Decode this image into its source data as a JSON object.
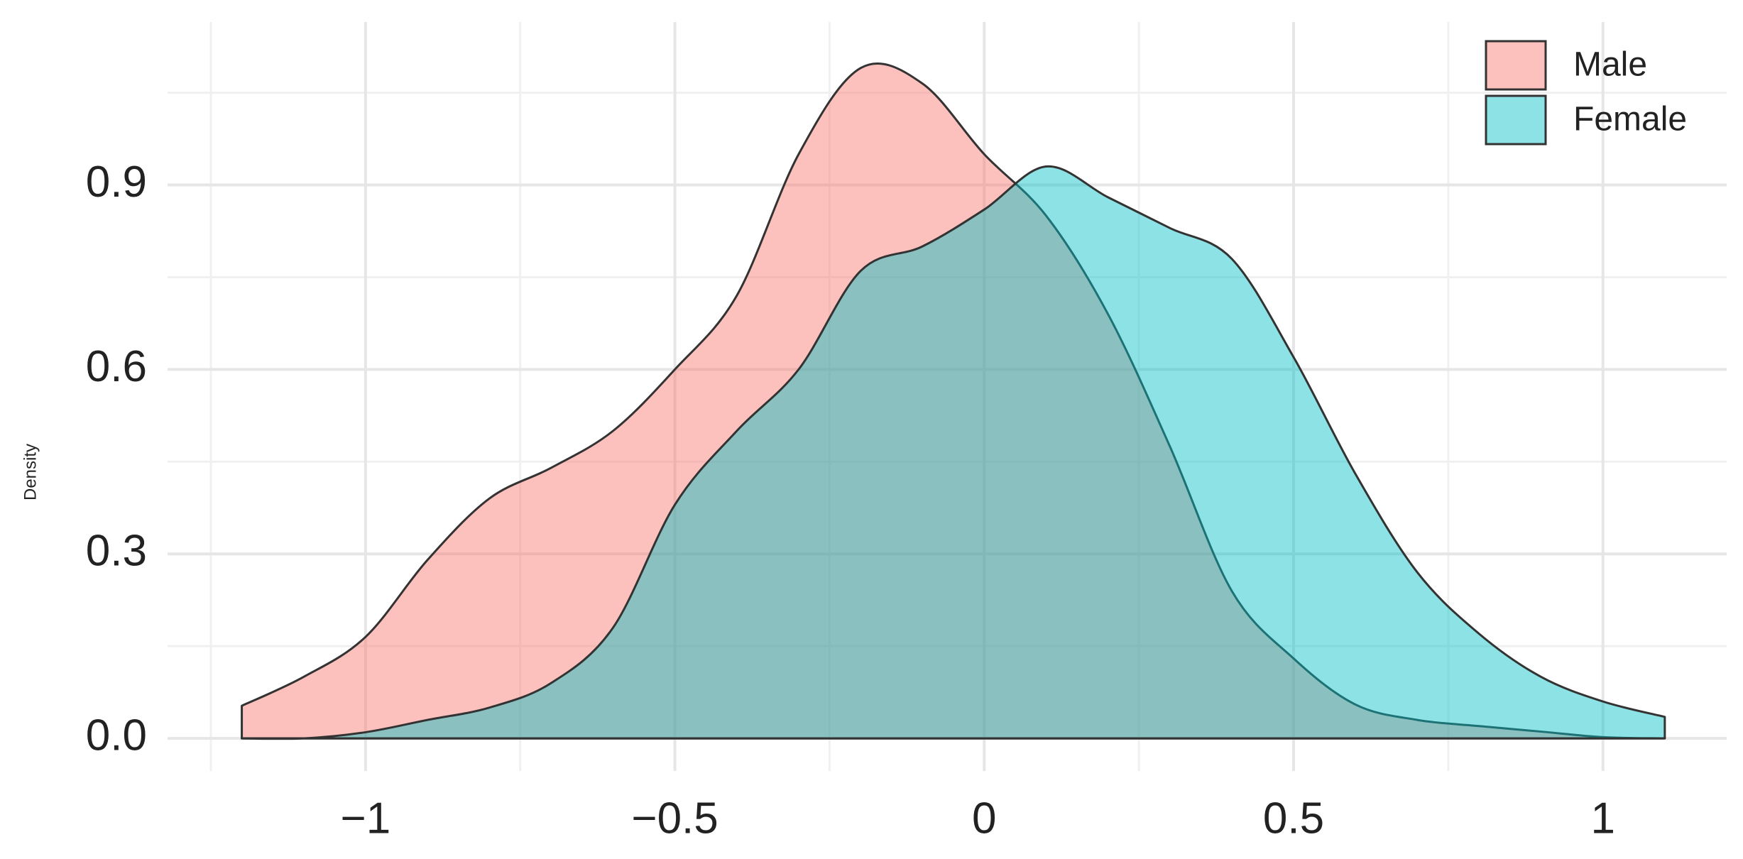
{
  "chart_data": {
    "type": "density",
    "y_label": "Density",
    "x": [
      -1.2,
      -1.1,
      -1.0,
      -0.9,
      -0.8,
      -0.7,
      -0.6,
      -0.5,
      -0.4,
      -0.3,
      -0.2,
      -0.1,
      0.0,
      0.1,
      0.2,
      0.3,
      0.4,
      0.5,
      0.6,
      0.7,
      0.8,
      0.9,
      1.0,
      1.1
    ],
    "series": [
      {
        "name": "Male",
        "color": "#F8766D",
        "values": [
          0.053,
          0.1,
          0.165,
          0.29,
          0.39,
          0.44,
          0.5,
          0.6,
          0.72,
          0.95,
          1.09,
          1.065,
          0.95,
          0.85,
          0.69,
          0.475,
          0.24,
          0.13,
          0.055,
          0.03,
          0.02,
          0.011,
          0.002,
          0.0
        ]
      },
      {
        "name": "Female",
        "color": "#00BFC4",
        "values": [
          0.0,
          0.0,
          0.01,
          0.03,
          0.05,
          0.09,
          0.18,
          0.38,
          0.5,
          0.6,
          0.76,
          0.8,
          0.86,
          0.93,
          0.88,
          0.83,
          0.78,
          0.62,
          0.43,
          0.27,
          0.17,
          0.1,
          0.06,
          0.035
        ]
      }
    ],
    "xlim": [
      -1.32,
      1.2
    ],
    "ylim": [
      -0.053,
      1.165
    ],
    "xticks": [
      {
        "value": -1,
        "label": "−1"
      },
      {
        "value": -0.5,
        "label": "−0.5"
      },
      0,
      0.5,
      1
    ],
    "yticks": [
      {
        "value": 0,
        "label": "0.0"
      },
      0.3,
      0.6,
      0.9
    ],
    "grid": true,
    "legend_position": "top-right",
    "fill_opacity": 0.45
  }
}
